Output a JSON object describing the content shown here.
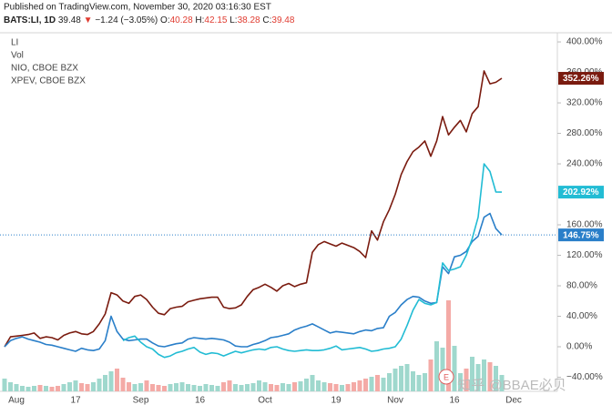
{
  "header": {
    "published": "Published on TradingView.com, November 30, 2020 03:16:30 EST",
    "symbol": "BATS:LI, 1D",
    "last": 39.48,
    "arrow": "▼",
    "change": "−1.24 (−3.05%)",
    "ohlc": [
      {
        "label": "O:",
        "value": 40.28
      },
      {
        "label": "H:",
        "value": 42.15
      },
      {
        "label": "L:",
        "value": 38.28
      },
      {
        "label": "C:",
        "value": 39.48
      }
    ]
  },
  "chart_data": {
    "type": "line",
    "categories": [
      null,
      null,
      "Aug",
      null,
      null,
      null,
      null,
      null,
      null,
      null,
      null,
      null,
      "17",
      null,
      null,
      null,
      null,
      null,
      null,
      null,
      null,
      null,
      null,
      "Sep",
      null,
      null,
      null,
      null,
      null,
      null,
      null,
      null,
      null,
      "16",
      null,
      null,
      null,
      null,
      null,
      null,
      null,
      null,
      null,
      null,
      "Oct",
      null,
      null,
      null,
      null,
      null,
      null,
      null,
      null,
      null,
      null,
      null,
      "19",
      null,
      null,
      null,
      null,
      null,
      null,
      null,
      null,
      null,
      "Nov",
      null,
      null,
      null,
      null,
      null,
      null,
      null,
      null,
      null,
      "16",
      null,
      null,
      null,
      null,
      null,
      null,
      null,
      null,
      null,
      "Dec"
    ],
    "series": [
      {
        "name": "LI",
        "color": "#7a1b0f",
        "last_label": "352.26%",
        "values": [
          0,
          13,
          14,
          15,
          16,
          18,
          11,
          13,
          12,
          9,
          15,
          18,
          20,
          17,
          16,
          20,
          30,
          43,
          71,
          68,
          60,
          57,
          66,
          68,
          62,
          52,
          44,
          42,
          50,
          52,
          53,
          59,
          61,
          63,
          64,
          65,
          65,
          52,
          50,
          51,
          55,
          66,
          75,
          78,
          82,
          78,
          73,
          80,
          83,
          79,
          82,
          84,
          124,
          134,
          138,
          135,
          132,
          136,
          133,
          130,
          125,
          117,
          152,
          140,
          164,
          180,
          200,
          226,
          243,
          256,
          262,
          270,
          250,
          270,
          302,
          278,
          288,
          297,
          282,
          306,
          315,
          362,
          345,
          347,
          352.26,
          null,
          null
        ]
      },
      {
        "name": "NIO, CBOE BZX",
        "color": "#2a7fc9",
        "last_label": "146.75%",
        "price_line": true,
        "values": [
          0,
          8,
          11,
          13,
          10,
          8,
          6,
          3,
          2,
          0,
          -2,
          -4,
          -6,
          -2,
          -4,
          -5,
          -3,
          8,
          40,
          20,
          10,
          8,
          9,
          10,
          10,
          5,
          1,
          0,
          2,
          4,
          5,
          10,
          12,
          11,
          10,
          11,
          10,
          9,
          6,
          1,
          0,
          0,
          3,
          5,
          8,
          12,
          13,
          15,
          17,
          22,
          25,
          27,
          30,
          26,
          22,
          18,
          20,
          19,
          18,
          17,
          20,
          22,
          21,
          24,
          25,
          40,
          45,
          55,
          62,
          66,
          65,
          60,
          57,
          58,
          105,
          96,
          118,
          120,
          125,
          138,
          145,
          170,
          175,
          155,
          146.75,
          null,
          null
        ]
      },
      {
        "name": "XPEV, CBOE BZX",
        "color": "#22bcd4",
        "last_label": "202.92%",
        "values": [
          null,
          null,
          null,
          null,
          null,
          null,
          null,
          null,
          null,
          null,
          null,
          null,
          null,
          null,
          null,
          null,
          null,
          null,
          null,
          null,
          8,
          12,
          14,
          6,
          0,
          -3,
          -10,
          -14,
          -12,
          -8,
          -6,
          -3,
          -1,
          -7,
          -10,
          -8,
          -9,
          -12,
          -9,
          -6,
          -8,
          -6,
          -4,
          -3,
          -4,
          -1,
          0,
          -3,
          -5,
          -6,
          -5,
          -4,
          -5,
          -5,
          -4,
          -2,
          1,
          -4,
          -3,
          -2,
          -1,
          -3,
          -6,
          -5,
          -3,
          -2,
          0,
          10,
          28,
          48,
          62,
          57,
          55,
          58,
          110,
          100,
          102,
          105,
          120,
          142,
          170,
          240,
          230,
          203,
          202.92,
          null,
          null
        ]
      }
    ],
    "volume": {
      "name": "Vol",
      "up_color": "#9fd8cd",
      "down_color": "#f4aaa6",
      "ylim": [
        0,
        100
      ],
      "values": [
        14,
        10,
        8,
        6,
        5,
        6,
        7,
        6,
        5,
        6,
        8,
        10,
        12,
        9,
        8,
        10,
        14,
        18,
        22,
        25,
        15,
        10,
        8,
        9,
        12,
        8,
        7,
        6,
        8,
        9,
        10,
        8,
        7,
        6,
        8,
        7,
        6,
        10,
        12,
        8,
        7,
        8,
        9,
        12,
        10,
        8,
        7,
        9,
        8,
        10,
        11,
        14,
        18,
        12,
        10,
        9,
        8,
        7,
        8,
        10,
        12,
        14,
        16,
        18,
        15,
        20,
        25,
        28,
        30,
        22,
        18,
        20,
        35,
        55,
        48,
        100,
        50,
        20,
        25,
        38,
        30,
        35,
        32,
        28,
        18,
        null,
        null
      ]
    },
    "ylim": [
      -58.5,
      412
    ],
    "yticks": [
      {
        "value": 400,
        "label": "400.00%"
      },
      {
        "value": 360,
        "label": "360.00%"
      },
      {
        "value": 320,
        "label": "320.00%"
      },
      {
        "value": 280,
        "label": "280.00%"
      },
      {
        "value": 240,
        "label": "240.00%"
      },
      {
        "value": 160,
        "label": "160.00%"
      },
      {
        "value": 120,
        "label": "120.00%"
      },
      {
        "value": 80,
        "label": "80.00%"
      },
      {
        "value": 40,
        "label": "40.00%"
      },
      {
        "value": 0,
        "label": "0.00%"
      },
      {
        "value": -40,
        "label": "−40.00%"
      }
    ],
    "earnings_marker": "E",
    "watermark": "知乎 @BBAE必贝"
  }
}
